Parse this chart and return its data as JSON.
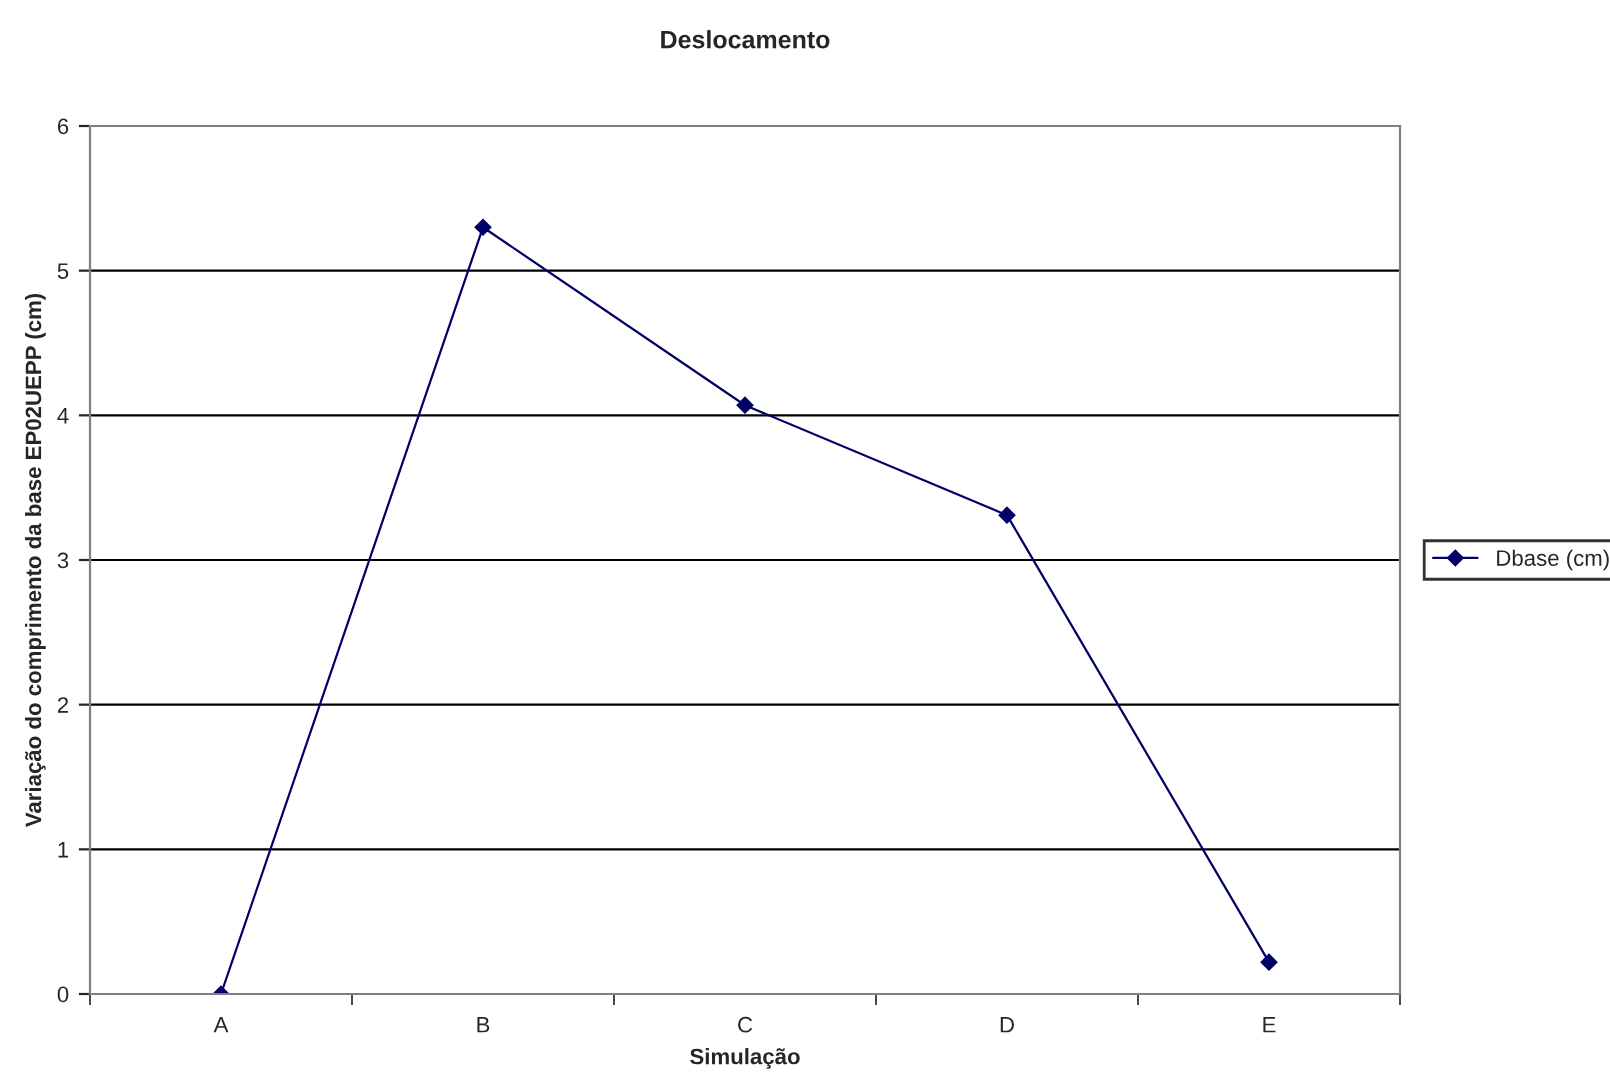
{
  "chart_data": {
    "type": "line",
    "title": "Deslocamento",
    "xlabel": "Simulação",
    "ylabel": "Variação do comprimento da base EP02UEPP (cm)",
    "categories": [
      "A",
      "B",
      "C",
      "D",
      "E"
    ],
    "series": [
      {
        "name": "Dbase (cm)",
        "color": "#000066",
        "values": [
          0,
          5.3,
          4.07,
          3.31,
          0.22
        ]
      }
    ],
    "ylim": [
      0,
      6
    ],
    "yticks": [
      0,
      1,
      2,
      3,
      4,
      5,
      6
    ],
    "grid": "y",
    "legend": "right",
    "marker": "diamond",
    "line_style": "solid"
  }
}
